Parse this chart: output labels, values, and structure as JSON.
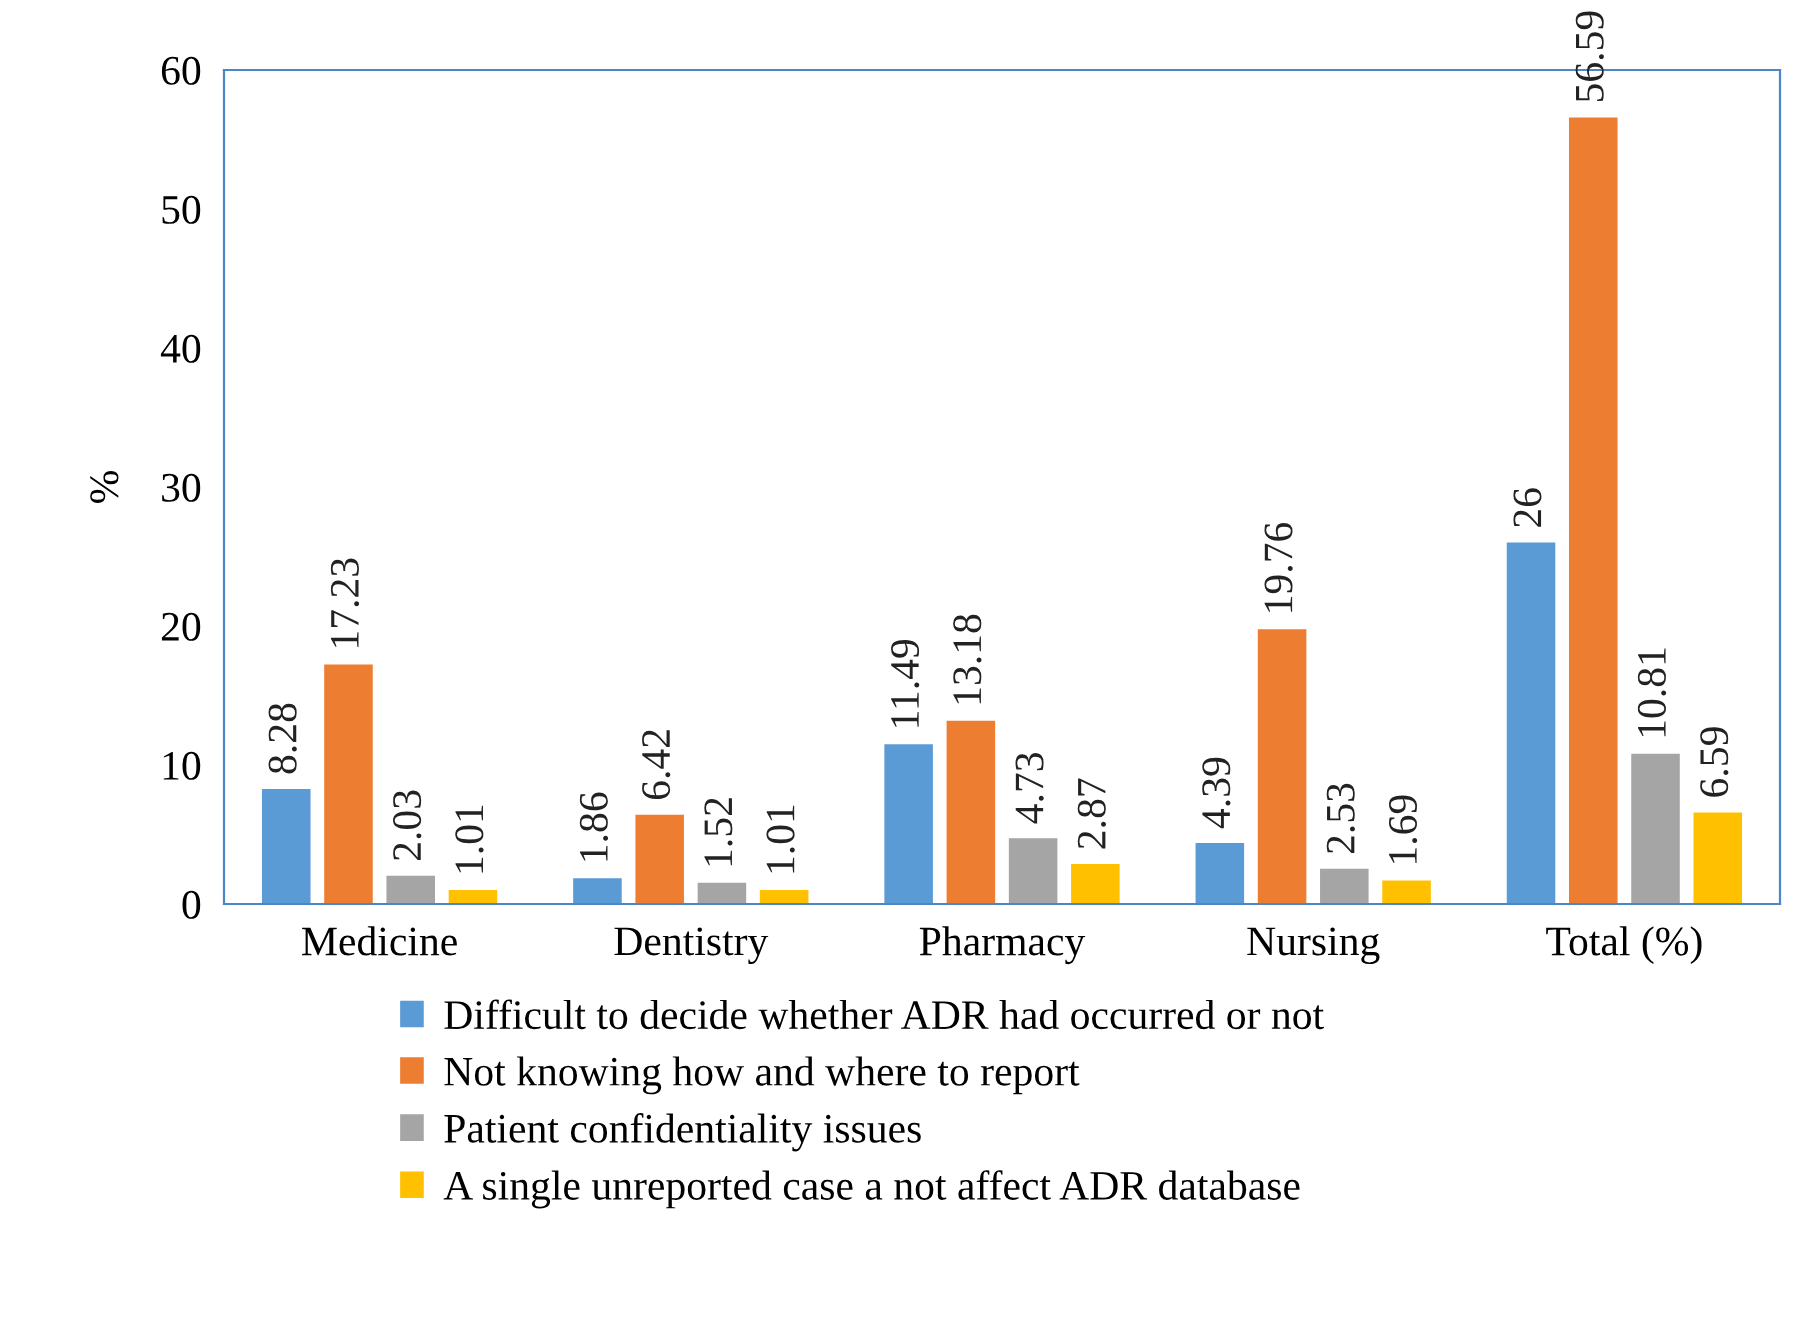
{
  "chart_data": {
    "type": "bar",
    "ylabel": "%",
    "categories": [
      "Medicine",
      "Dentistry",
      "Pharmacy",
      "Nursing",
      "Total (%)"
    ],
    "series": [
      {
        "name": "Difficult to decide whether ADR had occurred or not",
        "color": "#5b9bd5",
        "values": [
          8.28,
          1.86,
          11.49,
          4.39,
          26
        ]
      },
      {
        "name": "Not knowing how and where to report",
        "color": "#ed7d31",
        "values": [
          17.23,
          6.42,
          13.18,
          19.76,
          56.59
        ]
      },
      {
        "name": "Patient confidentiality issues",
        "color": "#a5a5a5",
        "values": [
          2.03,
          1.52,
          4.73,
          2.53,
          10.81
        ]
      },
      {
        "name": "A single unreported case a not affect ADR database",
        "color": "#ffc000",
        "values": [
          1.01,
          1.01,
          2.87,
          1.69,
          6.59
        ]
      }
    ],
    "ylim": [
      0,
      60
    ],
    "yticks": [
      0,
      10,
      20,
      30,
      40,
      50,
      60
    ],
    "grid": false,
    "legend": "bottom",
    "data_labels": true
  }
}
